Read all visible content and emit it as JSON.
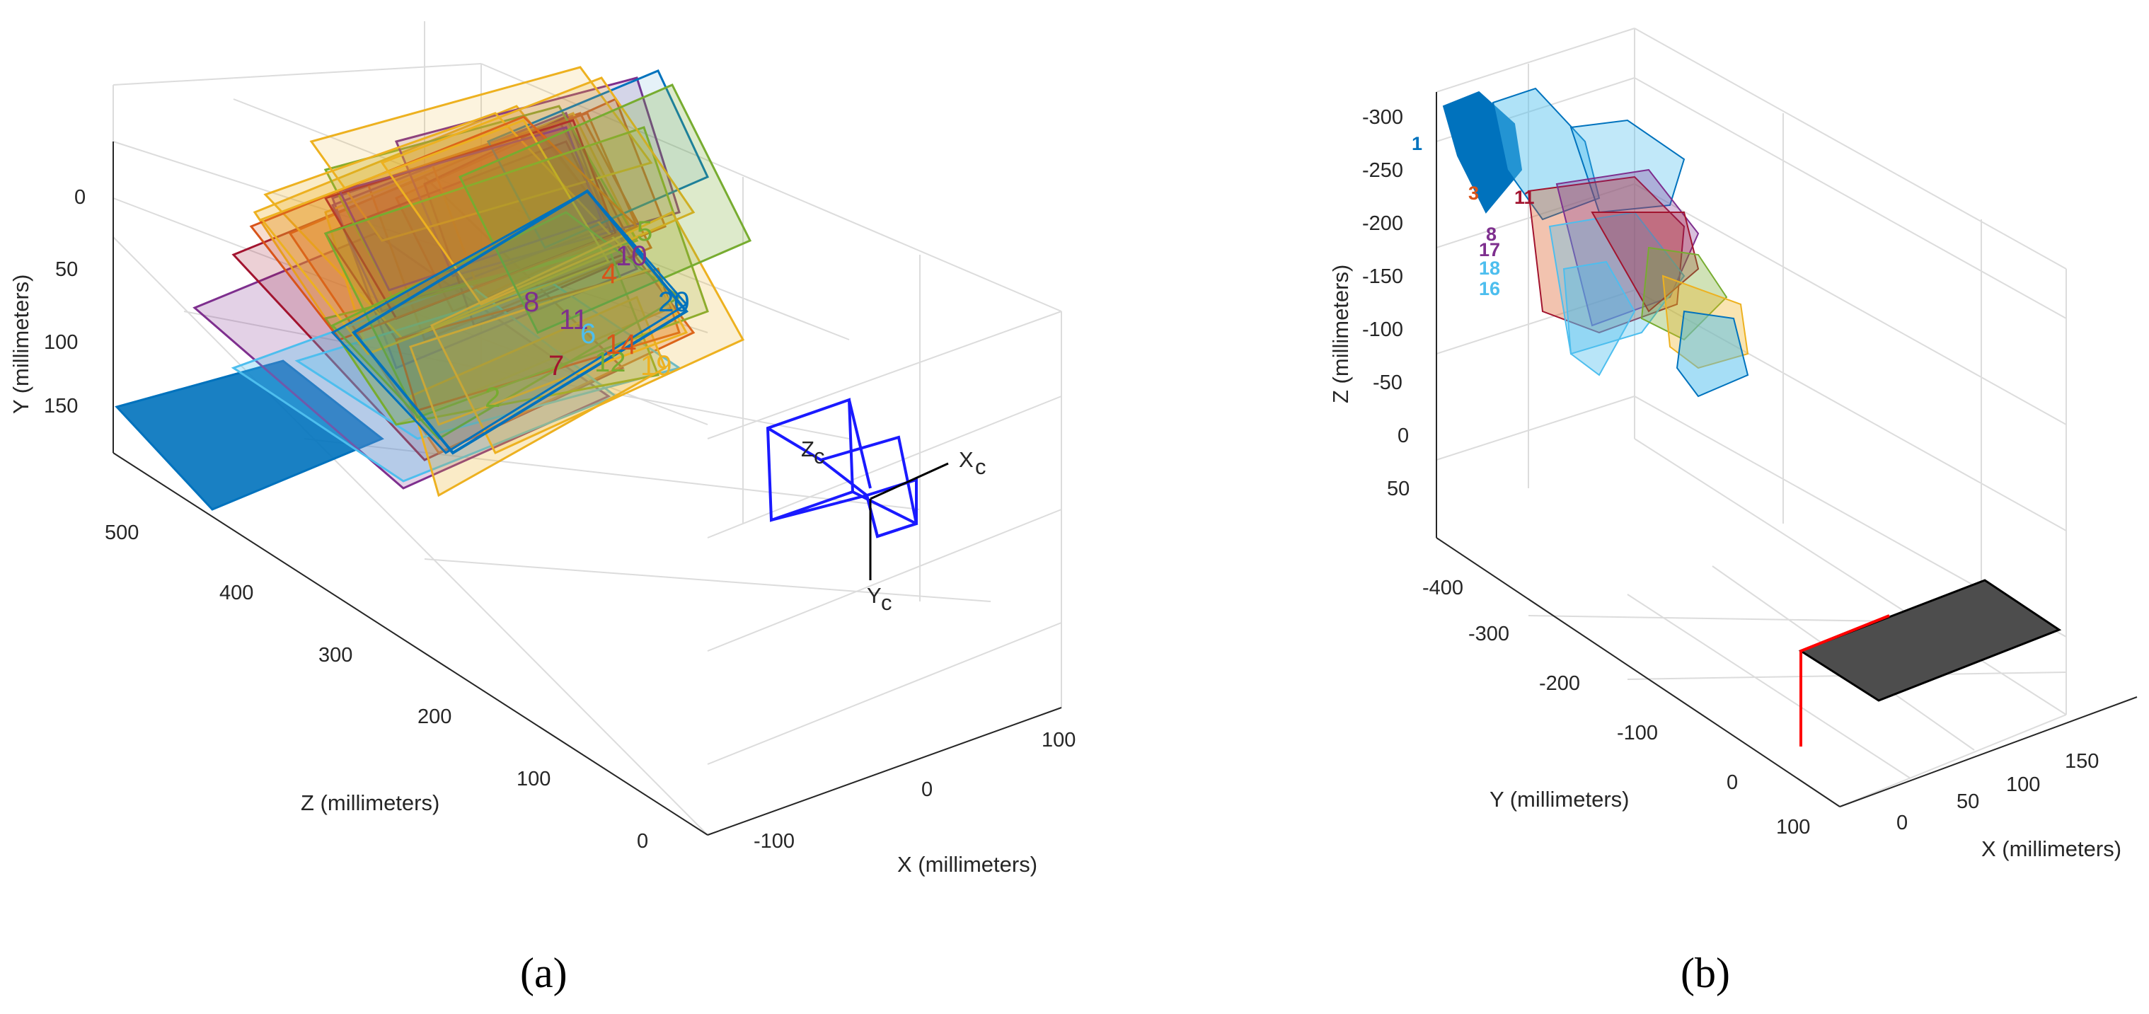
{
  "panel_a": {
    "label": "(a)",
    "y_axis": {
      "label": "Y (millimeters)",
      "ticks": [
        "0",
        "50",
        "100",
        "150"
      ]
    },
    "z_axis": {
      "label": "Z (millimeters)",
      "ticks": [
        "500",
        "400",
        "300",
        "200",
        "100",
        "0"
      ]
    },
    "x_axis": {
      "label": "X (millimeters)",
      "ticks": [
        "100",
        "0",
        "-100"
      ]
    },
    "camera_axes": {
      "x": "X",
      "y": "Y",
      "z": "Z",
      "subscript": "c"
    },
    "board_numbers": [
      "5",
      "10",
      "20",
      "11",
      "12",
      "19",
      "6",
      "7",
      "2",
      "8",
      "14",
      "4"
    ],
    "board_colors": [
      "#0072BD",
      "#D95319",
      "#EDB120",
      "#7E2F8E",
      "#77AC30",
      "#4DBEEE",
      "#A2142F"
    ]
  },
  "panel_b": {
    "label": "(b)",
    "z_axis": {
      "label": "Z (millimeters)",
      "ticks": [
        "-300",
        "-250",
        "-200",
        "-150",
        "-100",
        "-50",
        "0",
        "50"
      ]
    },
    "y_axis": {
      "label": "Y (millimeters)",
      "ticks": [
        "-400",
        "-300",
        "-200",
        "-100",
        "0",
        "100"
      ]
    },
    "x_axis": {
      "label": "X (millimeters)",
      "ticks": [
        "0",
        "50",
        "100",
        "150"
      ]
    },
    "camera_numbers": [
      "1",
      "3",
      "11",
      "8",
      "17",
      "18",
      "16"
    ],
    "board_color": "#4d4d4d",
    "board_edge_color": "#ff0000"
  }
}
